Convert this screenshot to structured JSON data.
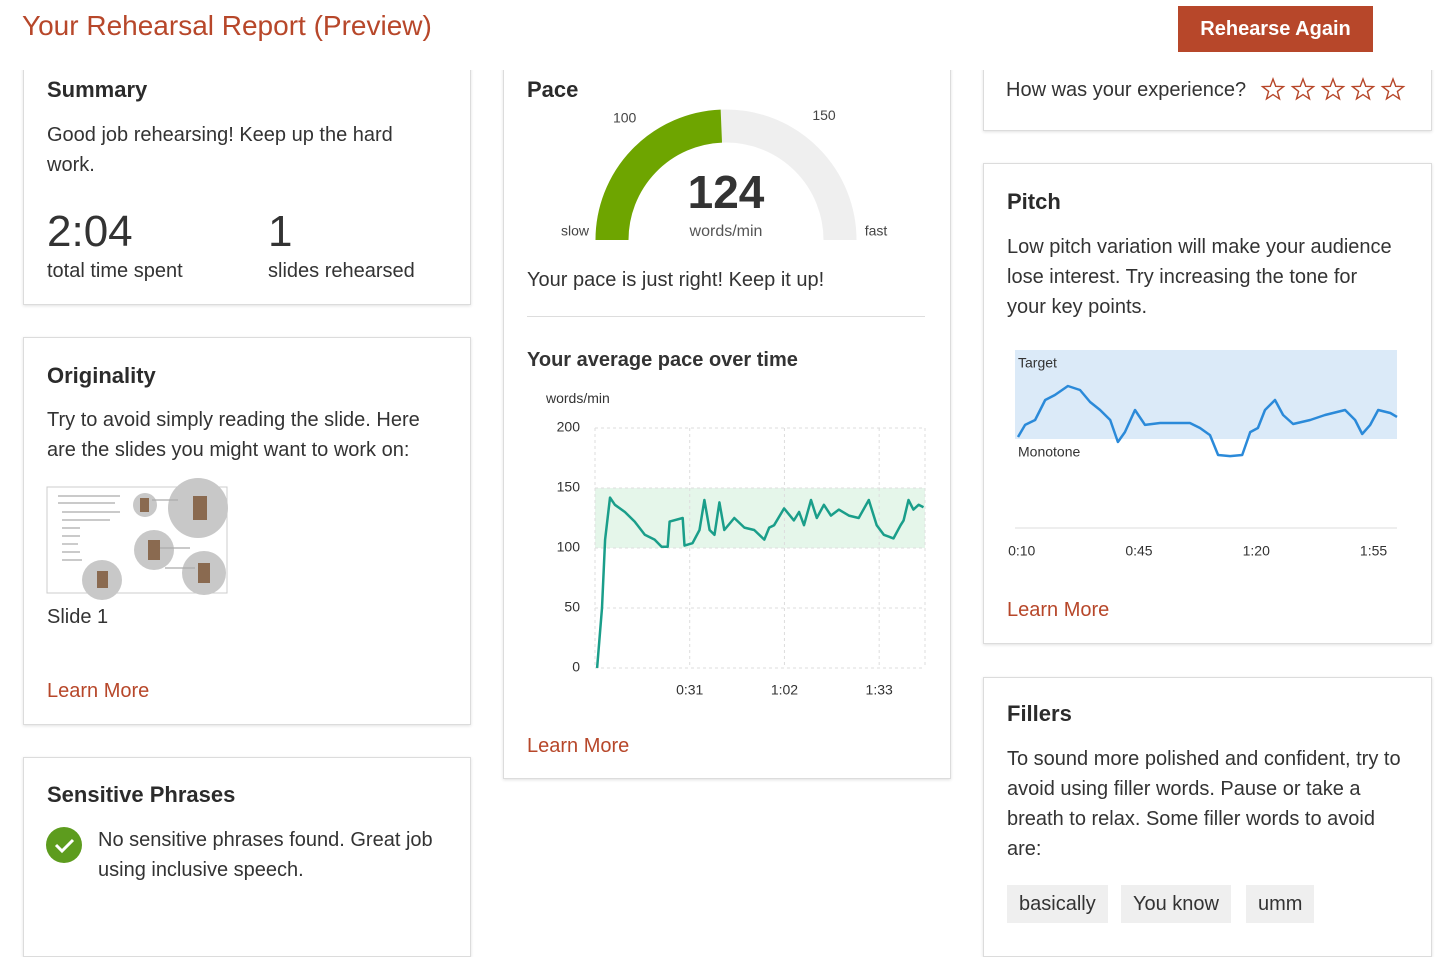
{
  "header": {
    "title": "Your Rehearsal Report (Preview)",
    "button": "Rehearse Again"
  },
  "summary": {
    "title": "Summary",
    "text": "Good job rehearsing! Keep up the hard work.",
    "stats": [
      {
        "value": "2:04",
        "label": "total time spent"
      },
      {
        "value": "1",
        "label": "slides rehearsed"
      }
    ]
  },
  "originality": {
    "title": "Originality",
    "text": "Try to avoid simply reading the slide. Here are the slides you might want to work on:",
    "slides": [
      "Slide 1"
    ],
    "link": "Learn More"
  },
  "sensitive_phrases": {
    "title": "Sensitive Phrases",
    "text": "No sensitive phrases found. Great job using inclusive speech."
  },
  "pace": {
    "title": "Pace",
    "gauge": {
      "type": "gauge",
      "value": 124,
      "unit": "words/min",
      "min_label": "slow",
      "max_label": "fast",
      "lim": [
        68,
        183
      ],
      "ticks": [
        100,
        150
      ],
      "color": "#6ea500",
      "track_color": "#efefef"
    },
    "message": "Your pace is just right! Keep it up!",
    "chart_data": {
      "type": "line",
      "title": "Your average pace over time",
      "y_label": "words/min",
      "x": [
        0.7,
        2.3,
        3.3,
        4.9,
        6.5,
        9.8,
        13,
        16.3,
        19.5,
        21.8,
        23.8,
        24.4,
        28.7,
        29.3,
        31.9,
        34.2,
        35.8,
        37.5,
        39.1,
        40.7,
        42.3,
        45.6,
        48.9,
        52.1,
        55.4,
        57,
        58.6,
        61.9,
        65.1,
        66.8,
        68.4,
        70.7,
        72.6,
        74.9,
        77.2,
        79.8,
        83.1,
        86.3,
        89.6,
        92.2,
        94.5,
        97.7,
        100,
        101,
        102.6,
        104.2,
        105.9,
        107.5
      ],
      "series": [
        {
          "color": "#1a9e8a",
          "values": [
            0,
            50,
            107,
            142,
            136,
            130,
            122,
            111,
            107,
            101,
            101,
            122,
            125,
            102,
            104,
            115,
            140,
            115,
            111,
            138,
            115,
            125,
            117,
            115,
            107,
            117,
            119,
            133,
            123,
            130,
            119,
            140,
            125,
            136,
            127,
            132,
            127,
            125,
            140,
            119,
            111,
            108,
            119,
            123,
            140,
            132,
            136,
            134
          ]
        }
      ],
      "xlim": [
        0,
        108
      ],
      "ylim": [
        0,
        200
      ],
      "yticks": [
        0,
        50,
        100,
        150,
        200
      ],
      "xticks": [
        {
          "value": 31,
          "label": "0:31"
        },
        {
          "value": 62,
          "label": "1:02"
        },
        {
          "value": 93,
          "label": "1:33"
        }
      ],
      "target_band": [
        100,
        150
      ],
      "band_color": "#e5f6ea",
      "grid": true
    },
    "link": "Learn More"
  },
  "experience": {
    "question": "How was your experience?",
    "stars": 5
  },
  "pitch": {
    "title": "Pitch",
    "text": "Low pitch variation will make your audience lose interest. Try increasing the tone for your key points.",
    "chart_data": {
      "type": "line",
      "band_labels": [
        "Target",
        "Monotone"
      ],
      "x": [
        8.9,
        11,
        14,
        17,
        19.9,
        23.8,
        27.4,
        30.4,
        33.4,
        36.4,
        38.7,
        40.8,
        43.8,
        46.8,
        51.3,
        55.8,
        60.2,
        63.2,
        66.2,
        68.6,
        72.2,
        75.8,
        78.2,
        80.5,
        82.6,
        85.6,
        88,
        91,
        96.1,
        100.5,
        106.5,
        109.5,
        111.6,
        114,
        116.4,
        120,
        122
      ],
      "series": [
        {
          "color": "#2b8ad9",
          "values": [
            51.1,
            57.9,
            60.7,
            71.9,
            74.7,
            79.8,
            77.5,
            70.8,
            66.3,
            60.7,
            48.3,
            53.9,
            66.3,
            57.9,
            59,
            59,
            59,
            56.2,
            52.2,
            41,
            40.4,
            41,
            53.9,
            56.2,
            66.3,
            71.9,
            63.5,
            58.4,
            60.7,
            63.5,
            66.3,
            60.7,
            52.8,
            57.9,
            66.3,
            64.6,
            62.4
          ]
        }
      ],
      "xlim": [
        8,
        122
      ],
      "ylim": [
        0,
        100
      ],
      "xticks": [
        {
          "value": 10,
          "label": "0:10"
        },
        {
          "value": 45,
          "label": "0:45"
        },
        {
          "value": 80,
          "label": "1:20"
        },
        {
          "value": 115,
          "label": "1:55"
        }
      ],
      "target_band": [
        50,
        100
      ],
      "band_color": "#dbeaf8"
    },
    "link": "Learn More"
  },
  "fillers": {
    "title": "Fillers",
    "text": "To sound more polished and confident, try to avoid using filler words. Pause or take a breath to relax. Some filler words to avoid are:",
    "words": [
      "basically",
      "You know",
      "umm"
    ]
  }
}
